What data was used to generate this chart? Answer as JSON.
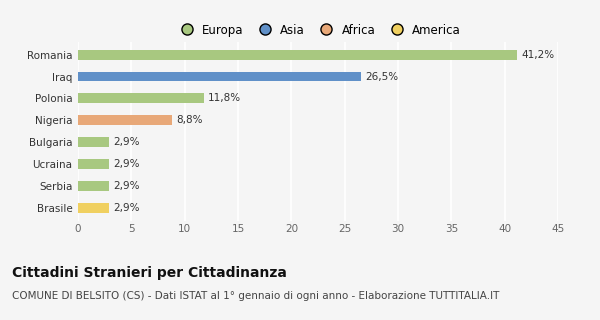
{
  "categories": [
    "Brasile",
    "Serbia",
    "Ucraina",
    "Bulgaria",
    "Nigeria",
    "Polonia",
    "Iraq",
    "Romania"
  ],
  "values": [
    2.9,
    2.9,
    2.9,
    2.9,
    8.8,
    11.8,
    26.5,
    41.2
  ],
  "colors": [
    "#f0d060",
    "#a8c880",
    "#a8c880",
    "#a8c880",
    "#e8a878",
    "#a8c880",
    "#6090c8",
    "#a8c880"
  ],
  "labels": [
    "2,9%",
    "2,9%",
    "2,9%",
    "2,9%",
    "8,8%",
    "11,8%",
    "26,5%",
    "41,2%"
  ],
  "xlim": [
    0,
    45
  ],
  "xticks": [
    0,
    5,
    10,
    15,
    20,
    25,
    30,
    35,
    40,
    45
  ],
  "title": "Cittadini Stranieri per Cittadinanza",
  "subtitle": "COMUNE DI BELSITO (CS) - Dati ISTAT al 1° gennaio di ogni anno - Elaborazione TUTTITALIA.IT",
  "legend_labels": [
    "Europa",
    "Asia",
    "Africa",
    "America"
  ],
  "legend_colors": [
    "#a8c880",
    "#6090c8",
    "#e8a878",
    "#f0d060"
  ],
  "bar_height": 0.45,
  "background_color": "#f5f5f5",
  "grid_color": "#ffffff",
  "title_fontsize": 10,
  "subtitle_fontsize": 7.5,
  "label_fontsize": 7.5,
  "tick_fontsize": 7.5,
  "legend_fontsize": 8.5
}
